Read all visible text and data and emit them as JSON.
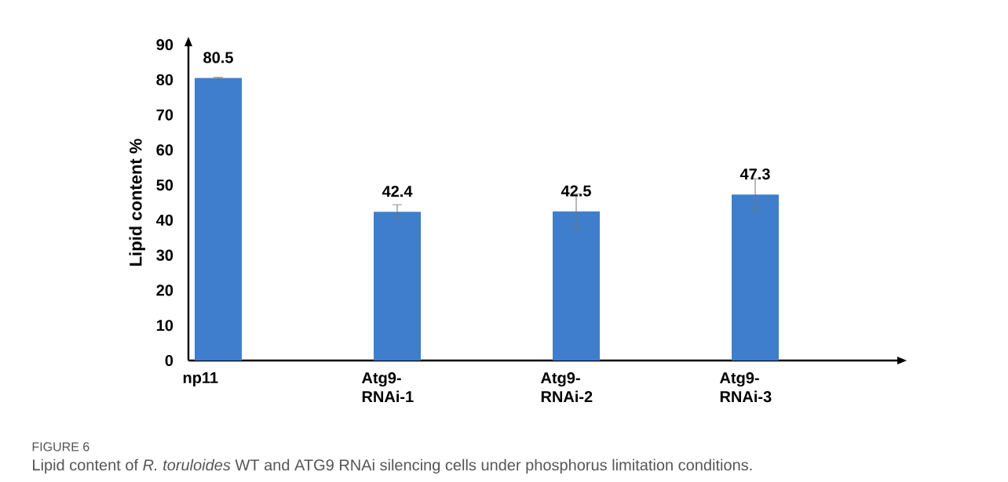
{
  "chart_data": {
    "type": "bar",
    "ylabel": "Lipid content %",
    "categories": [
      "np11",
      "Atg9-RNAi-1",
      "Atg9-RNAi-2",
      "Atg9-RNAi-3"
    ],
    "values": [
      80.5,
      42.4,
      42.5,
      47.3
    ],
    "errors": [
      0.2,
      2,
      5,
      4.5
    ],
    "color": "#3e7ecd",
    "ylim": [
      0,
      90
    ],
    "yticks": [
      0,
      10,
      20,
      30,
      40,
      50,
      60,
      70,
      80,
      90
    ],
    "data_labels": true,
    "annotations": [
      "FIGURE 6",
      "Lipid content of *R. toruloides* WT and ATG9 RNAi silencing cells under phosphorus limitation conditions."
    ]
  }
}
